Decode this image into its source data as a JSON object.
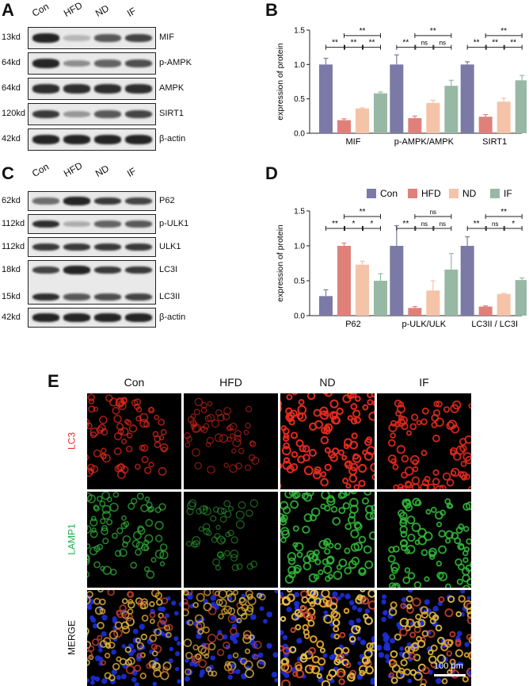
{
  "panels": {
    "A": "A",
    "B": "B",
    "C": "C",
    "D": "D",
    "E": "E"
  },
  "lanes": [
    "Con",
    "HFD",
    "ND",
    "IF"
  ],
  "blotA": {
    "rows": [
      {
        "kd": "13kd",
        "name": "MIF",
        "intensity": [
          0.95,
          0.25,
          0.7,
          0.8
        ]
      },
      {
        "kd": "64kd",
        "name": "p-AMPK",
        "intensity": [
          0.95,
          0.45,
          0.65,
          0.75
        ]
      },
      {
        "kd": "64kd",
        "name": "AMPK",
        "intensity": [
          0.9,
          0.9,
          0.9,
          0.9
        ]
      },
      {
        "kd": "120kd",
        "name": "SIRT1",
        "intensity": [
          0.85,
          0.4,
          0.7,
          0.8
        ]
      },
      {
        "kd": "42kd",
        "name": "β-actin",
        "intensity": [
          0.95,
          0.95,
          0.95,
          0.95
        ]
      }
    ]
  },
  "blotC": {
    "rows": [
      {
        "kd": "62kd",
        "name": "P62",
        "intensity": [
          0.6,
          0.95,
          0.85,
          0.8
        ]
      },
      {
        "kd": "112kd",
        "name": "p-ULK1",
        "intensity": [
          0.9,
          0.3,
          0.65,
          0.7
        ]
      },
      {
        "kd": "112kd",
        "name": "ULK1",
        "intensity": [
          0.85,
          0.85,
          0.85,
          0.85
        ]
      },
      {
        "kd": "18kd",
        "name": "LC3I",
        "intensity": [
          0.8,
          0.95,
          0.85,
          0.85
        ]
      },
      {
        "kd": "15kd",
        "name": "LC3II",
        "intensity": [
          0.9,
          0.7,
          0.75,
          0.8
        ]
      },
      {
        "kd": "42kd",
        "name": "β-actin",
        "intensity": [
          0.95,
          0.95,
          0.95,
          0.95
        ]
      }
    ]
  },
  "colors": {
    "Con": "#7b7aa6",
    "HFD": "#e0807a",
    "ND": "#f5c3a8",
    "IF": "#97b8a5"
  },
  "chart_data": [
    {
      "type": "bar",
      "panel": "B",
      "ylabel": "expression of protein",
      "ylim": [
        0,
        1.5
      ],
      "yticks": [
        "0.0",
        "0.5",
        "1.0",
        "1.5"
      ],
      "categories": [
        "MIF",
        "p-AMPK/AMPK",
        "SIRT1"
      ],
      "series": [
        {
          "name": "Con",
          "values": [
            1.0,
            1.0,
            1.0
          ],
          "err": [
            0.09,
            0.14,
            0.04
          ]
        },
        {
          "name": "HFD",
          "values": [
            0.19,
            0.22,
            0.24
          ],
          "err": [
            0.02,
            0.03,
            0.03
          ]
        },
        {
          "name": "ND",
          "values": [
            0.36,
            0.44,
            0.46
          ],
          "err": [
            0.01,
            0.04,
            0.05
          ]
        },
        {
          "name": "IF",
          "values": [
            0.58,
            0.69,
            0.77
          ],
          "err": [
            0.02,
            0.08,
            0.07
          ]
        }
      ],
      "significance": [
        [
          "**",
          "**",
          "**",
          "**"
        ],
        [
          "**",
          "ns",
          "ns",
          "**"
        ],
        [
          "**",
          "**",
          "**",
          "**"
        ]
      ]
    },
    {
      "type": "bar",
      "panel": "D",
      "ylabel": "expression of protein",
      "ylim": [
        0,
        1.5
      ],
      "yticks": [
        "0.0",
        "0.5",
        "1.0",
        "1.5"
      ],
      "categories": [
        "P62",
        "p-ULK/ULK",
        "LC3II / LC3I"
      ],
      "legend": [
        "Con",
        "HFD",
        "ND",
        "IF"
      ],
      "series": [
        {
          "name": "Con",
          "values": [
            0.28,
            1.0,
            1.0
          ],
          "err": [
            0.09,
            0.29,
            0.13
          ]
        },
        {
          "name": "HFD",
          "values": [
            1.0,
            0.11,
            0.13
          ],
          "err": [
            0.04,
            0.02,
            0.01
          ]
        },
        {
          "name": "ND",
          "values": [
            0.73,
            0.36,
            0.31
          ],
          "err": [
            0.05,
            0.14,
            0.01
          ]
        },
        {
          "name": "IF",
          "values": [
            0.5,
            0.66,
            0.51
          ],
          "err": [
            0.1,
            0.23,
            0.03
          ]
        }
      ],
      "significance": [
        [
          "**",
          "*",
          "*",
          "**"
        ],
        [
          "**",
          "ns",
          "ns",
          "ns"
        ],
        [
          "**",
          "ns",
          "*",
          "**"
        ]
      ]
    }
  ],
  "micro": {
    "cols": [
      "Con",
      "HFD",
      "ND",
      "IF"
    ],
    "rows": [
      {
        "label": "LC3",
        "color": "#e0302a"
      },
      {
        "label": "LAMP1",
        "color": "#21b04b"
      },
      {
        "label": "MERGE",
        "color": "#111111"
      }
    ],
    "scalebar": "100 μm"
  }
}
